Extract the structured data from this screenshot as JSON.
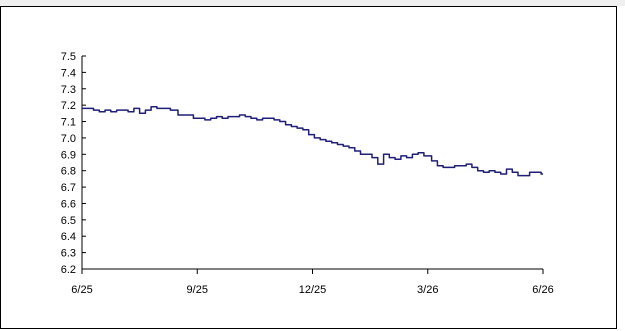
{
  "chart_data": {
    "type": "line",
    "title": "",
    "xlabel": "",
    "ylabel": "",
    "ylim": [
      6.2,
      7.5
    ],
    "yticks": [
      "7.5",
      "7.4",
      "7.3",
      "7.2",
      "7.1",
      "7.0",
      "6.9",
      "6.8",
      "6.7",
      "6.6",
      "6.5",
      "6.4",
      "6.3",
      "6.2"
    ],
    "ytick_values": [
      7.5,
      7.4,
      7.3,
      7.2,
      7.1,
      7.0,
      6.9,
      6.8,
      6.7,
      6.6,
      6.5,
      6.4,
      6.3,
      6.2
    ],
    "xticks": [
      "6/25",
      "9/25",
      "12/25",
      "3/26",
      "6/26"
    ],
    "x_range_months": [
      0,
      12
    ],
    "grid": false,
    "line_color": "#1f1f7a",
    "series": [
      {
        "values_x_months": [
          0,
          0.15,
          0.3,
          0.45,
          0.6,
          0.75,
          0.9,
          1.05,
          1.2,
          1.35,
          1.5,
          1.65,
          1.8,
          1.95,
          2.05,
          2.15,
          2.3,
          2.5,
          2.7,
          2.9,
          3.05,
          3.2,
          3.35,
          3.5,
          3.65,
          3.8,
          3.95,
          4.1,
          4.25,
          4.4,
          4.55,
          4.7,
          4.85,
          5.0,
          5.15,
          5.3,
          5.45,
          5.6,
          5.75,
          5.9,
          6.05,
          6.2,
          6.35,
          6.5,
          6.65,
          6.8,
          6.95,
          7.1,
          7.25,
          7.4,
          7.55,
          7.7,
          7.85,
          8.0,
          8.15,
          8.3,
          8.45,
          8.6,
          8.75,
          8.9,
          9.0,
          9.1,
          9.25,
          9.4,
          9.55,
          9.7,
          9.85,
          10.0,
          10.15,
          10.3,
          10.45,
          10.6,
          10.75,
          10.9,
          11.05,
          11.2,
          11.35,
          11.5,
          11.65,
          11.8,
          11.95,
          12.0
        ],
        "values": [
          7.18,
          7.18,
          7.17,
          7.16,
          7.17,
          7.16,
          7.17,
          7.17,
          7.16,
          7.18,
          7.15,
          7.17,
          7.19,
          7.18,
          7.18,
          7.18,
          7.17,
          7.14,
          7.14,
          7.12,
          7.12,
          7.11,
          7.12,
          7.13,
          7.12,
          7.13,
          7.13,
          7.14,
          7.13,
          7.12,
          7.11,
          7.12,
          7.12,
          7.11,
          7.1,
          7.08,
          7.07,
          7.06,
          7.05,
          7.02,
          7.0,
          6.99,
          6.98,
          6.97,
          6.96,
          6.95,
          6.94,
          6.92,
          6.9,
          6.9,
          6.88,
          6.84,
          6.9,
          6.88,
          6.87,
          6.89,
          6.88,
          6.9,
          6.91,
          6.89,
          6.89,
          6.86,
          6.83,
          6.82,
          6.82,
          6.83,
          6.83,
          6.84,
          6.82,
          6.8,
          6.79,
          6.8,
          6.79,
          6.78,
          6.81,
          6.79,
          6.77,
          6.77,
          6.79,
          6.79,
          6.78,
          6.78
        ]
      }
    ]
  }
}
